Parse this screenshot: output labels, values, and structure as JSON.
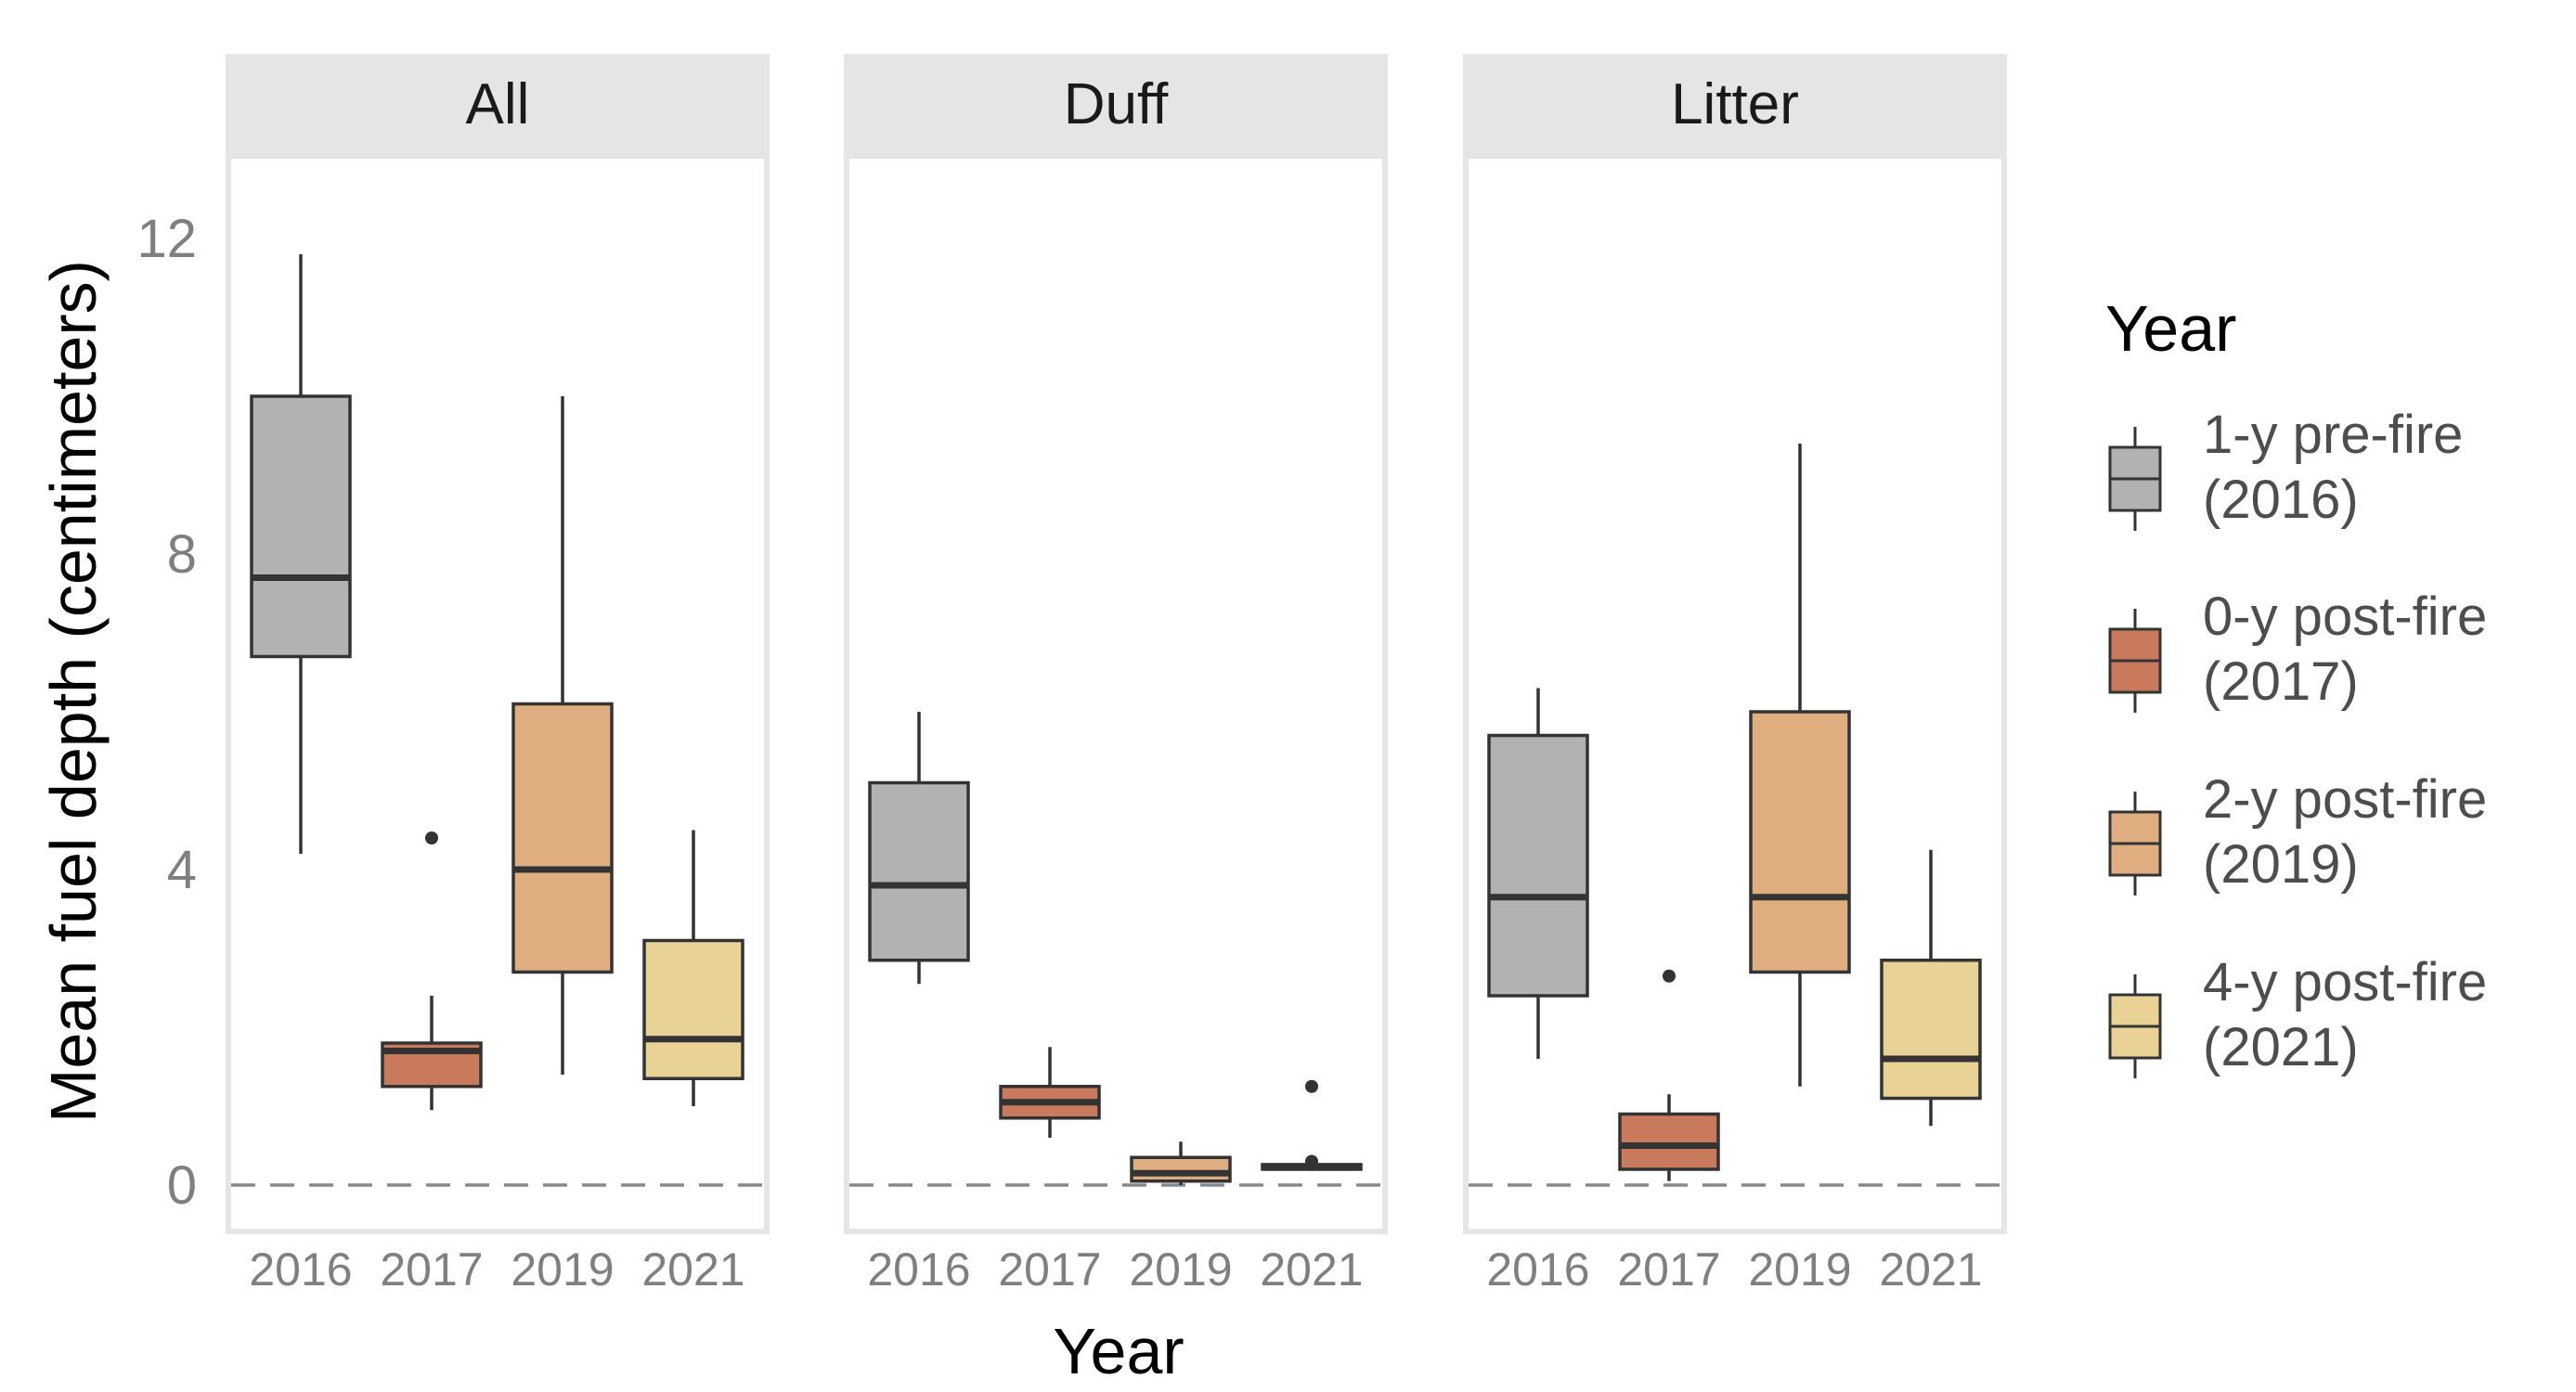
{
  "chart_data": {
    "type": "boxplot",
    "ylabel": "Mean fuel depth (centimeters)",
    "xlabel": "Year",
    "ylim": [
      -0.7,
      14.5
    ],
    "y_ticks": [
      "0",
      "4",
      "8",
      "12"
    ],
    "x_ticks": [
      "2016",
      "2017",
      "2019",
      "2021"
    ],
    "reference_line": {
      "y": 0,
      "style": "dashed",
      "color": "#888888"
    },
    "facets": [
      {
        "label": "All",
        "boxes": [
          {
            "x": "2016",
            "q1": 6.7,
            "median": 7.7,
            "q3": 10.0,
            "whisker_low": 4.2,
            "whisker_high": 11.8,
            "outliers": []
          },
          {
            "x": "2017",
            "q1": 1.25,
            "median": 1.7,
            "q3": 1.8,
            "whisker_low": 0.95,
            "whisker_high": 2.4,
            "outliers": [
              4.4
            ]
          },
          {
            "x": "2019",
            "q1": 2.7,
            "median": 4.0,
            "q3": 6.1,
            "whisker_low": 1.4,
            "whisker_high": 10.0,
            "outliers": []
          },
          {
            "x": "2021",
            "q1": 1.35,
            "median": 1.85,
            "q3": 3.1,
            "whisker_low": 1.0,
            "whisker_high": 4.5,
            "outliers": []
          }
        ]
      },
      {
        "label": "Duff",
        "boxes": [
          {
            "x": "2016",
            "q1": 2.85,
            "median": 3.8,
            "q3": 5.1,
            "whisker_low": 2.55,
            "whisker_high": 6.0,
            "outliers": []
          },
          {
            "x": "2017",
            "q1": 0.85,
            "median": 1.05,
            "q3": 1.25,
            "whisker_low": 0.6,
            "whisker_high": 1.75,
            "outliers": []
          },
          {
            "x": "2019",
            "q1": 0.05,
            "median": 0.15,
            "q3": 0.35,
            "whisker_low": 0.0,
            "whisker_high": 0.55,
            "outliers": []
          },
          {
            "x": "2021",
            "q1": 0.2,
            "median": 0.23,
            "q3": 0.26,
            "whisker_low": 0.18,
            "whisker_high": 0.28,
            "outliers": [
              1.25,
              0.3
            ]
          }
        ]
      },
      {
        "label": "Litter",
        "boxes": [
          {
            "x": "2016",
            "q1": 2.4,
            "median": 3.65,
            "q3": 5.7,
            "whisker_low": 1.6,
            "whisker_high": 6.3,
            "outliers": []
          },
          {
            "x": "2017",
            "q1": 0.2,
            "median": 0.5,
            "q3": 0.9,
            "whisker_low": 0.05,
            "whisker_high": 1.15,
            "outliers": [
              2.65
            ]
          },
          {
            "x": "2019",
            "q1": 2.7,
            "median": 3.65,
            "q3": 6.0,
            "whisker_low": 1.25,
            "whisker_high": 9.4,
            "outliers": []
          },
          {
            "x": "2021",
            "q1": 1.1,
            "median": 1.6,
            "q3": 2.85,
            "whisker_low": 0.75,
            "whisker_high": 4.25,
            "outliers": []
          }
        ]
      }
    ],
    "legend": {
      "title": "Year",
      "position": "right",
      "entries": [
        {
          "x": "2016",
          "line1": "1-y pre-fire",
          "line2": "(2016)",
          "color": "#b2b2b2"
        },
        {
          "x": "2017",
          "line1": "0-y post-fire",
          "line2": "(2017)",
          "color": "#c97a5c"
        },
        {
          "x": "2019",
          "line1": "2-y post-fire",
          "line2": "(2019)",
          "color": "#deae80"
        },
        {
          "x": "2021",
          "line1": "4-y post-fire",
          "line2": "(2021)",
          "color": "#e9d295"
        }
      ]
    },
    "colors": {
      "strip_bg": "#e5e5e5",
      "panel_border": "#e5e5e5",
      "box_outline": "#333333"
    }
  }
}
